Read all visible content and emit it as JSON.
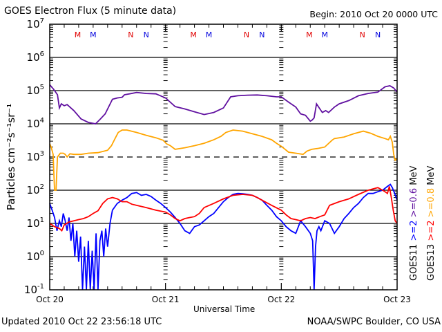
{
  "title": "GOES Electron Flux (5 minute data)",
  "begin": "Begin: 2010 Oct 20 0000 UTC",
  "updated": "Updated 2010 Oct 22 23:56:18 UTC",
  "credit": "NOAA/SWPC Boulder, CO USA",
  "chart_data": {
    "type": "line",
    "title": "GOES Electron Flux (5 minute data)",
    "xlabel": "Universal Time",
    "ylabel": "Particles cm⁻²s⁻¹sr⁻¹",
    "yscale": "log",
    "ylim": [
      0.1,
      10000000
    ],
    "xlim_hours": [
      0,
      72
    ],
    "x_ticks": [
      "Oct 20",
      "Oct 21",
      "Oct 22",
      "Oct 23"
    ],
    "y_ticks": [
      {
        "base": "10",
        "exp": "7"
      },
      {
        "base": "10",
        "exp": "6"
      },
      {
        "base": "10",
        "exp": "5"
      },
      {
        "base": "10",
        "exp": "4"
      },
      {
        "base": "10",
        "exp": "3"
      },
      {
        "base": "10",
        "exp": "2"
      },
      {
        "base": "10",
        "exp": "1"
      },
      {
        "base": "10",
        "exp": "0"
      },
      {
        "base": "10",
        "exp": "-1"
      }
    ],
    "grid_levels": [
      1000000,
      100000,
      10000,
      100,
      10,
      1
    ],
    "dashed_threshold": 1000,
    "markers": [
      {
        "label": "M",
        "color": "#e00000",
        "hour": 5.8
      },
      {
        "label": "M",
        "color": "#0000dd",
        "hour": 9.0
      },
      {
        "label": "N",
        "color": "#e00000",
        "hour": 16.8
      },
      {
        "label": "N",
        "color": "#0000dd",
        "hour": 20.0
      },
      {
        "label": "M",
        "color": "#e00000",
        "hour": 29.8
      },
      {
        "label": "M",
        "color": "#0000dd",
        "hour": 33.0
      },
      {
        "label": "N",
        "color": "#e00000",
        "hour": 40.8
      },
      {
        "label": "N",
        "color": "#0000dd",
        "hour": 44.0
      },
      {
        "label": "M",
        "color": "#e00000",
        "hour": 53.8
      },
      {
        "label": "M",
        "color": "#0000dd",
        "hour": 57.0
      },
      {
        "label": "N",
        "color": "#e00000",
        "hour": 64.8
      },
      {
        "label": "N",
        "color": "#0000dd",
        "hour": 68.0
      }
    ],
    "legend": {
      "placement": "right",
      "satellites": [
        {
          "name": "GOES11",
          "items": [
            {
              "text": ">=2",
              "color": "#0000ff"
            },
            {
              "text": ">=0.6",
              "color": "#6010a0"
            },
            {
              "text": "MeV",
              "color": "#000000"
            }
          ]
        },
        {
          "name": "GOES13",
          "items": [
            {
              "text": ">=2",
              "color": "#ff0000"
            },
            {
              "text": ">=0.8",
              "color": "#ffa500"
            },
            {
              "text": "MeV",
              "color": "#000000"
            }
          ]
        }
      ]
    },
    "series": [
      {
        "name": "GOES11 >=0.6 MeV",
        "color": "#6010a0",
        "x": [
          0,
          0.8,
          1.6,
          2.0,
          2.4,
          3.0,
          3.6,
          5,
          6.5,
          8,
          9.5,
          10.5,
          11.5,
          13,
          14,
          15,
          15.5,
          16.5,
          18,
          20,
          22,
          24,
          26,
          28,
          30,
          32,
          34,
          36,
          37.5,
          39,
          41,
          43,
          45,
          47,
          48,
          49.5,
          51,
          52,
          53,
          54,
          54.4,
          54.8,
          55.3,
          56,
          56.5,
          57.2,
          57.8,
          59,
          60,
          62,
          64,
          66,
          68,
          69.5,
          70.5,
          71.3,
          72
        ],
        "y": [
          150000,
          110000,
          75000,
          30000,
          40000,
          35000,
          38000,
          25000,
          14000,
          11000,
          10000,
          14000,
          20000,
          55000,
          60000,
          63000,
          75000,
          80000,
          88000,
          82000,
          80000,
          60000,
          33000,
          28000,
          23000,
          19000,
          22000,
          30000,
          65000,
          70000,
          73000,
          74000,
          70000,
          65000,
          65000,
          45000,
          32000,
          20000,
          18000,
          12000,
          13000,
          15000,
          40000,
          28000,
          22000,
          25000,
          22000,
          32000,
          40000,
          50000,
          70000,
          82000,
          90000,
          130000,
          140000,
          120000,
          90000
        ]
      },
      {
        "name": "GOES13 >=0.8 MeV",
        "color": "#ffa500",
        "x": [
          0,
          0.3,
          0.7,
          1.0,
          1.3,
          1.6,
          2.2,
          2.8,
          3.2,
          3.6,
          4.2,
          5,
          6.5,
          8,
          10,
          12,
          12.8,
          13.5,
          14.2,
          15,
          16,
          18,
          20,
          22,
          23.5,
          24.2,
          25,
          26,
          28,
          30,
          32,
          34,
          35.5,
          36.5,
          38,
          40,
          42,
          44,
          46,
          47,
          48,
          48.8,
          49.5,
          51,
          52.5,
          53.3,
          54.3,
          55.5,
          57,
          58.5,
          59,
          61,
          63,
          65,
          66.5,
          68,
          69.5,
          70.2,
          70.6,
          71,
          71.3,
          71.6,
          72
        ],
        "y": [
          2500,
          2000,
          1200,
          100,
          100,
          1000,
          1300,
          1300,
          1200,
          1000,
          1250,
          1200,
          1200,
          1300,
          1350,
          1600,
          2200,
          3500,
          5500,
          6500,
          6500,
          5500,
          4500,
          3800,
          3200,
          2500,
          2200,
          1700,
          1900,
          2200,
          2600,
          3300,
          4200,
          5500,
          6500,
          6000,
          5000,
          4200,
          3300,
          2600,
          2100,
          1700,
          1400,
          1300,
          1200,
          1500,
          1700,
          1800,
          2000,
          3200,
          3600,
          4000,
          5000,
          6000,
          5200,
          4200,
          3600,
          3300,
          4200,
          2800,
          1200,
          800,
          900
        ]
      },
      {
        "name": "GOES11 >=2 MeV",
        "color": "#0000ff",
        "x": [
          0,
          0.5,
          1,
          1.5,
          2,
          2.4,
          2.8,
          3.2,
          3.6,
          4.0,
          4.4,
          4.8,
          5.2,
          5.6,
          6.0,
          6.4,
          6.8,
          7.2,
          7.6,
          8.0,
          8.4,
          8.8,
          9.2,
          9.6,
          10.0,
          10.4,
          10.8,
          11.2,
          11.6,
          12.0,
          12.5,
          13,
          14,
          15,
          16,
          17,
          18,
          19,
          20,
          21,
          22,
          23,
          24,
          25,
          26,
          27,
          28,
          29,
          30,
          31,
          32,
          33,
          34,
          35,
          36,
          37,
          38,
          39,
          40,
          41,
          42,
          43,
          44,
          45,
          46,
          47,
          48,
          49,
          50,
          51,
          52,
          53,
          54,
          54.5,
          54.8,
          55.1,
          55.4,
          55.8,
          56.2,
          57,
          58,
          59,
          60,
          61,
          62,
          63,
          64,
          65,
          66,
          67,
          68,
          69,
          70,
          70.6,
          71,
          71.5,
          72
        ],
        "y": [
          40,
          25,
          15,
          6,
          12,
          8,
          20,
          12,
          6,
          15,
          3,
          10,
          1,
          6,
          0.7,
          4,
          0.1,
          2,
          0.1,
          3,
          0.1,
          1.5,
          0.1,
          5,
          0.1,
          3,
          6,
          1,
          7,
          2,
          10,
          25,
          40,
          50,
          60,
          80,
          85,
          70,
          75,
          65,
          50,
          40,
          30,
          22,
          15,
          10,
          6,
          5,
          8,
          9,
          12,
          16,
          20,
          30,
          45,
          60,
          75,
          80,
          78,
          75,
          70,
          60,
          50,
          35,
          25,
          16,
          12,
          8,
          6,
          5,
          12,
          8,
          5,
          3,
          0.1,
          2,
          6,
          8,
          6,
          12,
          10,
          5,
          8,
          14,
          20,
          30,
          40,
          60,
          80,
          80,
          90,
          100,
          130,
          150,
          120,
          80,
          50
        ]
      },
      {
        "name": "GOES13 >=2 MeV",
        "color": "#ff0000",
        "x": [
          0,
          1,
          2,
          2.5,
          3,
          4,
          5,
          6,
          7,
          8,
          9,
          10,
          11,
          12,
          13,
          14,
          15,
          16,
          17,
          18,
          20,
          22,
          24,
          25,
          26,
          27,
          28,
          29,
          30,
          31,
          32,
          34,
          36,
          38,
          40,
          42,
          43,
          44,
          46,
          48,
          49,
          50,
          51,
          52,
          53,
          54,
          55,
          56,
          57,
          58,
          60,
          62,
          64,
          66,
          68,
          69,
          69.5,
          70,
          70.4,
          70.8,
          71.2,
          71.6,
          72
        ],
        "y": [
          10,
          8,
          7,
          6,
          9,
          11,
          12,
          13,
          14,
          16,
          20,
          24,
          40,
          55,
          60,
          55,
          45,
          45,
          38,
          35,
          30,
          25,
          22,
          18,
          14,
          12,
          14,
          15,
          16,
          20,
          30,
          40,
          55,
          70,
          75,
          70,
          60,
          50,
          35,
          25,
          18,
          14,
          13,
          12,
          14,
          15,
          14,
          16,
          18,
          35,
          45,
          55,
          75,
          100,
          120,
          100,
          90,
          80,
          130,
          60,
          25,
          12,
          10
        ]
      }
    ]
  }
}
